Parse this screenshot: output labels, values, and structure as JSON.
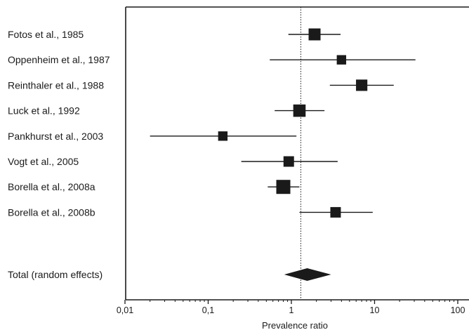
{
  "chart_data": {
    "type": "forest",
    "xlabel": "Prevalence ratio",
    "xscale": "log",
    "xlim": [
      0.01,
      100
    ],
    "reference_line": 1.3,
    "ticks": [
      {
        "value": 0.01,
        "label": "0,01"
      },
      {
        "value": 0.1,
        "label": "0,1"
      },
      {
        "value": 1,
        "label": "1"
      },
      {
        "value": 10,
        "label": "10"
      },
      {
        "value": 100,
        "label": "100"
      }
    ],
    "studies": [
      {
        "label": "Fotos et al., 1985",
        "estimate": 1.9,
        "lower": 0.92,
        "upper": 3.9,
        "weight": 0.75
      },
      {
        "label": "Oppenheim et al., 1987",
        "estimate": 4.0,
        "lower": 0.55,
        "upper": 31,
        "weight": 0.45
      },
      {
        "label": "Reinthaler et al., 1988",
        "estimate": 7.0,
        "lower": 2.9,
        "upper": 17,
        "weight": 0.68
      },
      {
        "label": "Luck et al., 1992",
        "estimate": 1.25,
        "lower": 0.63,
        "upper": 2.5,
        "weight": 0.8
      },
      {
        "label": "Pankhurst et al., 2003",
        "estimate": 0.15,
        "lower": 0.02,
        "upper": 1.15,
        "weight": 0.45
      },
      {
        "label": "Vogt et al., 2005",
        "estimate": 0.93,
        "lower": 0.25,
        "upper": 3.6,
        "weight": 0.58
      },
      {
        "label": "Borella et al., 2008a",
        "estimate": 0.8,
        "lower": 0.52,
        "upper": 1.25,
        "weight": 1.0
      },
      {
        "label": "Borella et al., 2008b",
        "estimate": 3.4,
        "lower": 1.25,
        "upper": 9.5,
        "weight": 0.58
      }
    ],
    "total": {
      "label": "Total (random effects)",
      "estimate": 1.55,
      "lower": 0.82,
      "upper": 3.0
    }
  }
}
